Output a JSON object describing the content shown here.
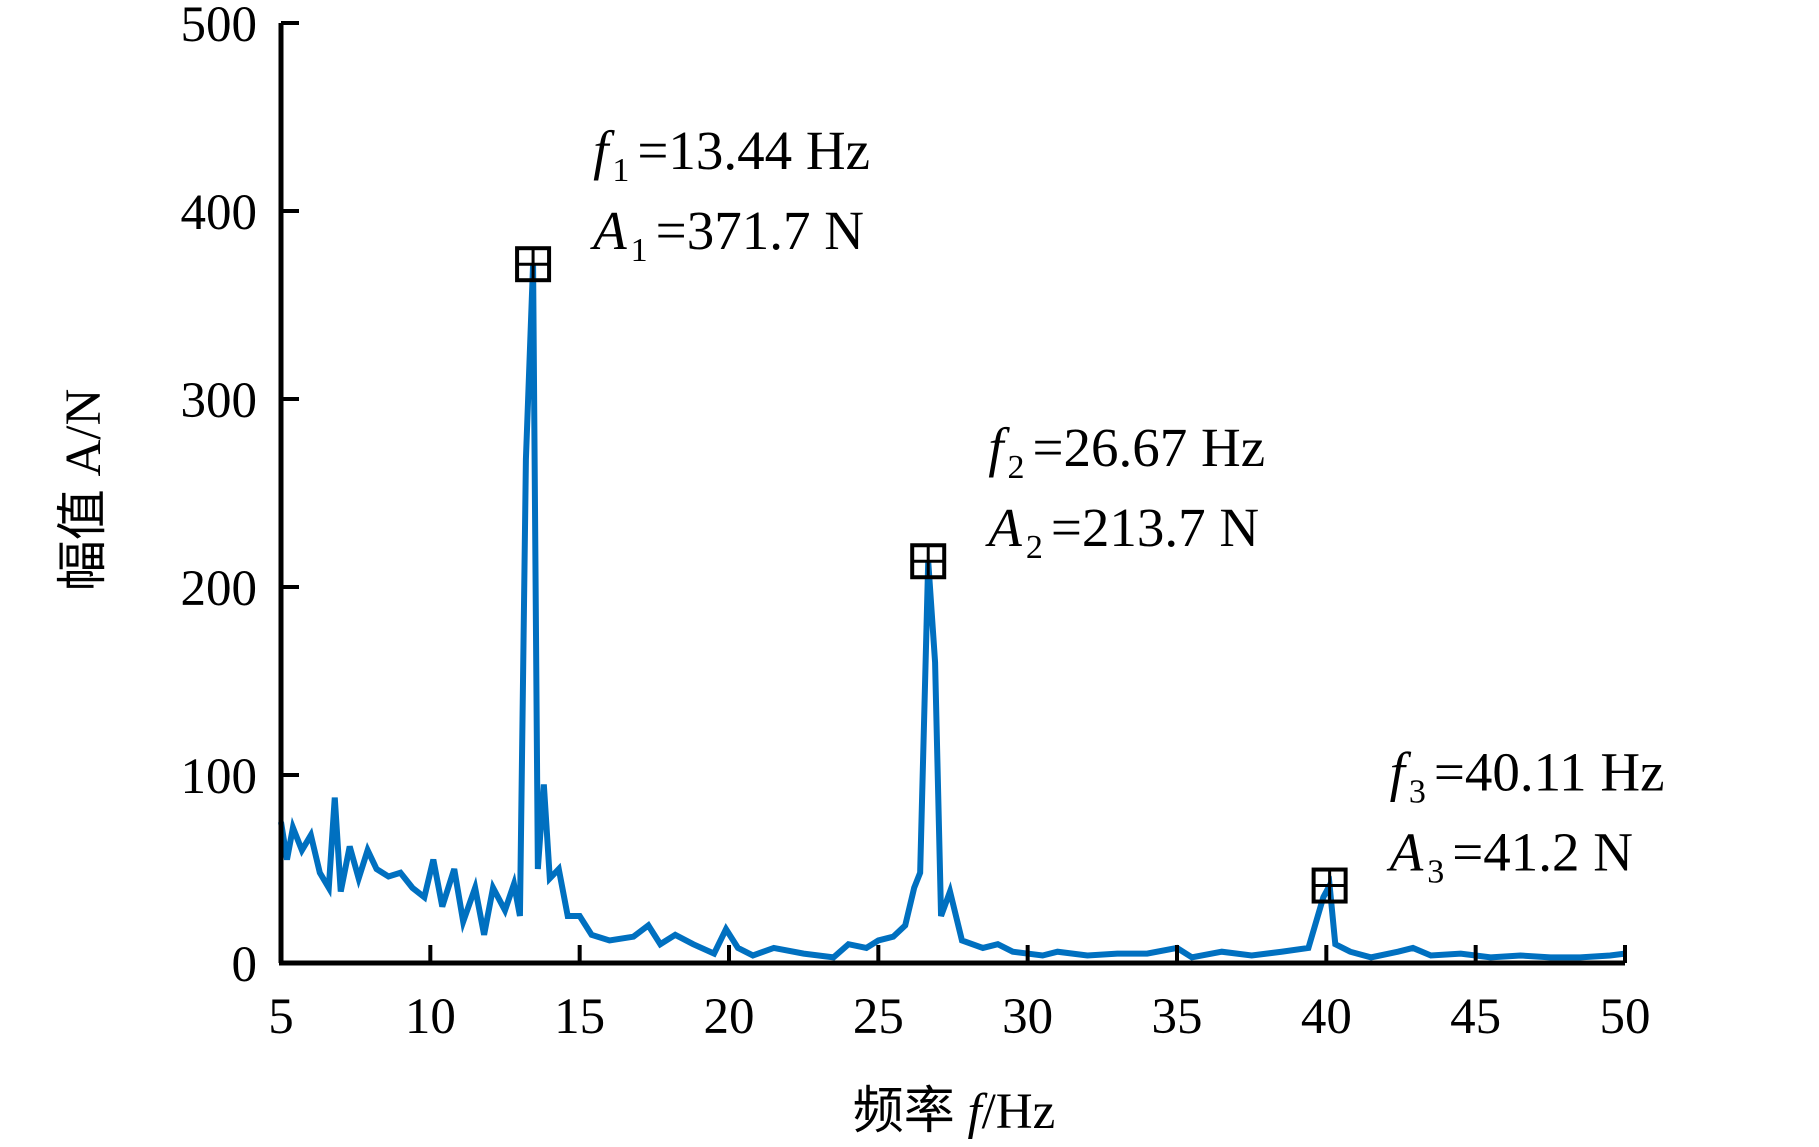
{
  "chart_data": {
    "type": "line",
    "ylabel": "幅值 A/N",
    "xlabel_prefix": "频率 ",
    "xlabel_symbol": "f",
    "xlabel_suffix": "/Hz",
    "xlim": [
      5,
      50
    ],
    "xticks": [
      5,
      10,
      15,
      20,
      25,
      30,
      35,
      40,
      45,
      50
    ],
    "ylim": [
      0,
      500
    ],
    "yticks": [
      0,
      100,
      200,
      300,
      400,
      500
    ],
    "x": [
      5.0,
      5.2,
      5.4,
      5.7,
      6.0,
      6.3,
      6.6,
      6.8,
      7.0,
      7.3,
      7.6,
      7.9,
      8.2,
      8.6,
      9.0,
      9.4,
      9.8,
      10.1,
      10.4,
      10.8,
      11.1,
      11.5,
      11.8,
      12.1,
      12.5,
      12.8,
      13.0,
      13.2,
      13.44,
      13.6,
      13.8,
      14.0,
      14.3,
      14.6,
      15.0,
      15.4,
      16.0,
      16.8,
      17.3,
      17.7,
      18.2,
      18.8,
      19.5,
      19.9,
      20.3,
      20.8,
      21.5,
      22.5,
      23.5,
      24.0,
      24.6,
      25.0,
      25.5,
      25.9,
      26.2,
      26.4,
      26.67,
      26.9,
      27.1,
      27.4,
      27.8,
      28.5,
      29.0,
      29.5,
      30.5,
      31.0,
      32.0,
      33.0,
      34.0,
      35.0,
      35.5,
      36.5,
      37.5,
      38.5,
      39.4,
      39.9,
      40.11,
      40.3,
      40.8,
      41.5,
      42.4,
      42.9,
      43.5,
      44.5,
      45.5,
      46.5,
      47.5,
      48.5,
      49.5,
      50.0
    ],
    "series": [
      {
        "name": "幅值",
        "color": "#0070c0",
        "values": [
          75,
          55,
          72,
          60,
          68,
          48,
          40,
          88,
          38,
          62,
          45,
          60,
          50,
          46,
          48,
          40,
          35,
          55,
          30,
          50,
          22,
          40,
          15,
          40,
          28,
          42,
          25,
          268,
          371.7,
          50,
          95,
          45,
          50,
          25,
          25,
          15,
          12,
          14,
          20,
          10,
          15,
          10,
          5,
          18,
          8,
          4,
          8,
          5,
          3,
          10,
          8,
          12,
          14,
          20,
          40,
          48,
          213.7,
          160,
          25,
          38,
          12,
          8,
          10,
          6,
          4,
          6,
          4,
          5,
          5,
          8,
          3,
          6,
          4,
          6,
          8,
          35,
          41.2,
          10,
          6,
          3,
          6,
          8,
          4,
          5,
          3,
          4,
          3,
          3,
          4,
          5
        ]
      }
    ],
    "annotations": [
      {
        "x": 13.44,
        "y": 371.7,
        "f_symbol": "f",
        "f_sub": "1",
        "f_text": "=13.44 Hz",
        "a_symbol": "A",
        "a_sub": "1",
        "a_text": "=371.7 N"
      },
      {
        "x": 26.67,
        "y": 213.7,
        "f_symbol": "f",
        "f_sub": "2",
        "f_text": "=26.67 Hz",
        "a_symbol": "A",
        "a_sub": "2",
        "a_text": "=213.7 N"
      },
      {
        "x": 40.11,
        "y": 41.2,
        "f_symbol": "f",
        "f_sub": "3",
        "f_text": "=40.11 Hz",
        "a_symbol": "A",
        "a_sub": "3",
        "a_text": "=41.2 N"
      }
    ]
  }
}
